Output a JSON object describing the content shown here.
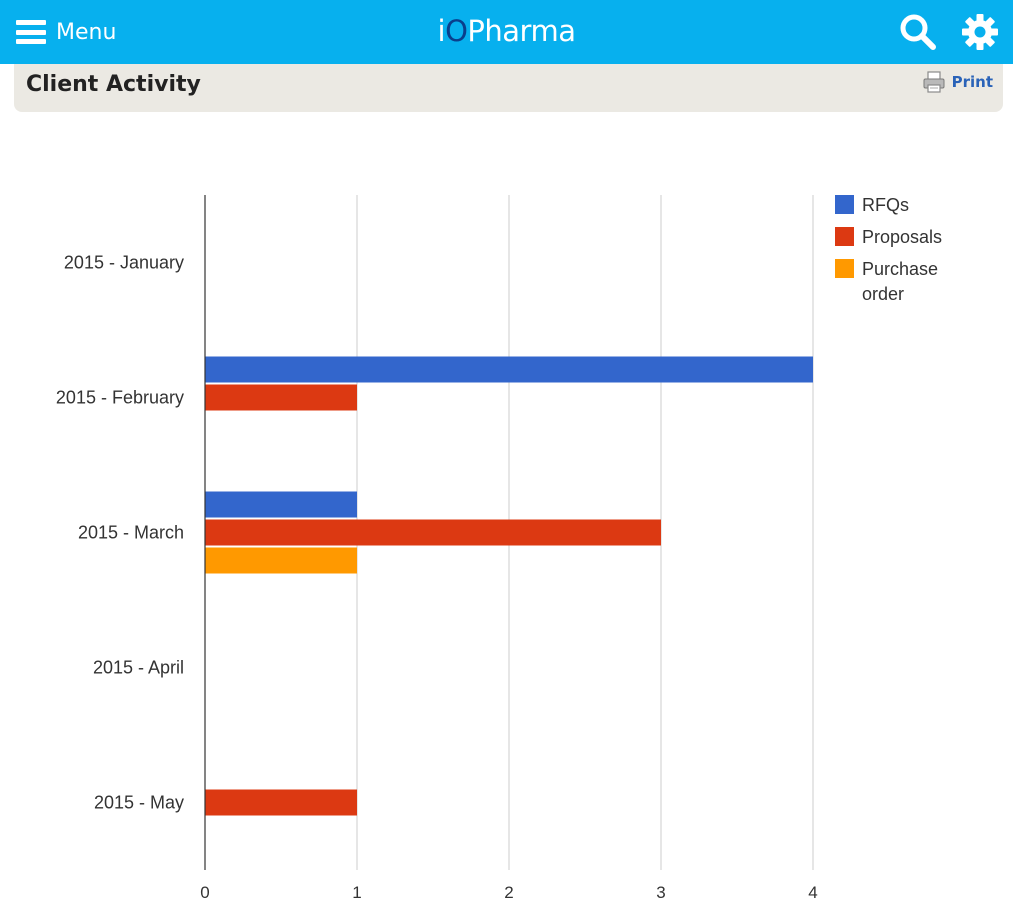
{
  "header": {
    "menu_label": "Menu",
    "brand_pre": "i",
    "brand_o": "O",
    "brand_post": "Pharma",
    "accent_color": "#07b0ee",
    "icons": [
      "menu-icon",
      "search-icon",
      "gear-icon"
    ]
  },
  "panel": {
    "title": "Client Activity",
    "print_label": "Print"
  },
  "chart_data": {
    "type": "bar",
    "orientation": "horizontal",
    "categories": [
      "2015 - January",
      "2015 - February",
      "2015 - March",
      "2015 - April",
      "2015 - May"
    ],
    "series": [
      {
        "name": "RFQs",
        "color": "#3366cc",
        "values": [
          0,
          4,
          1,
          0,
          0
        ]
      },
      {
        "name": "Proposals",
        "color": "#dc3912",
        "values": [
          0,
          1,
          3,
          0,
          1
        ]
      },
      {
        "name": "Purchase order",
        "color": "#ff9900",
        "values": [
          0,
          0,
          1,
          0,
          0
        ]
      }
    ],
    "xticks": [
      0,
      1,
      2,
      3,
      4
    ],
    "xlim": [
      0,
      4
    ],
    "grid": true,
    "legend_position": "right-top"
  }
}
